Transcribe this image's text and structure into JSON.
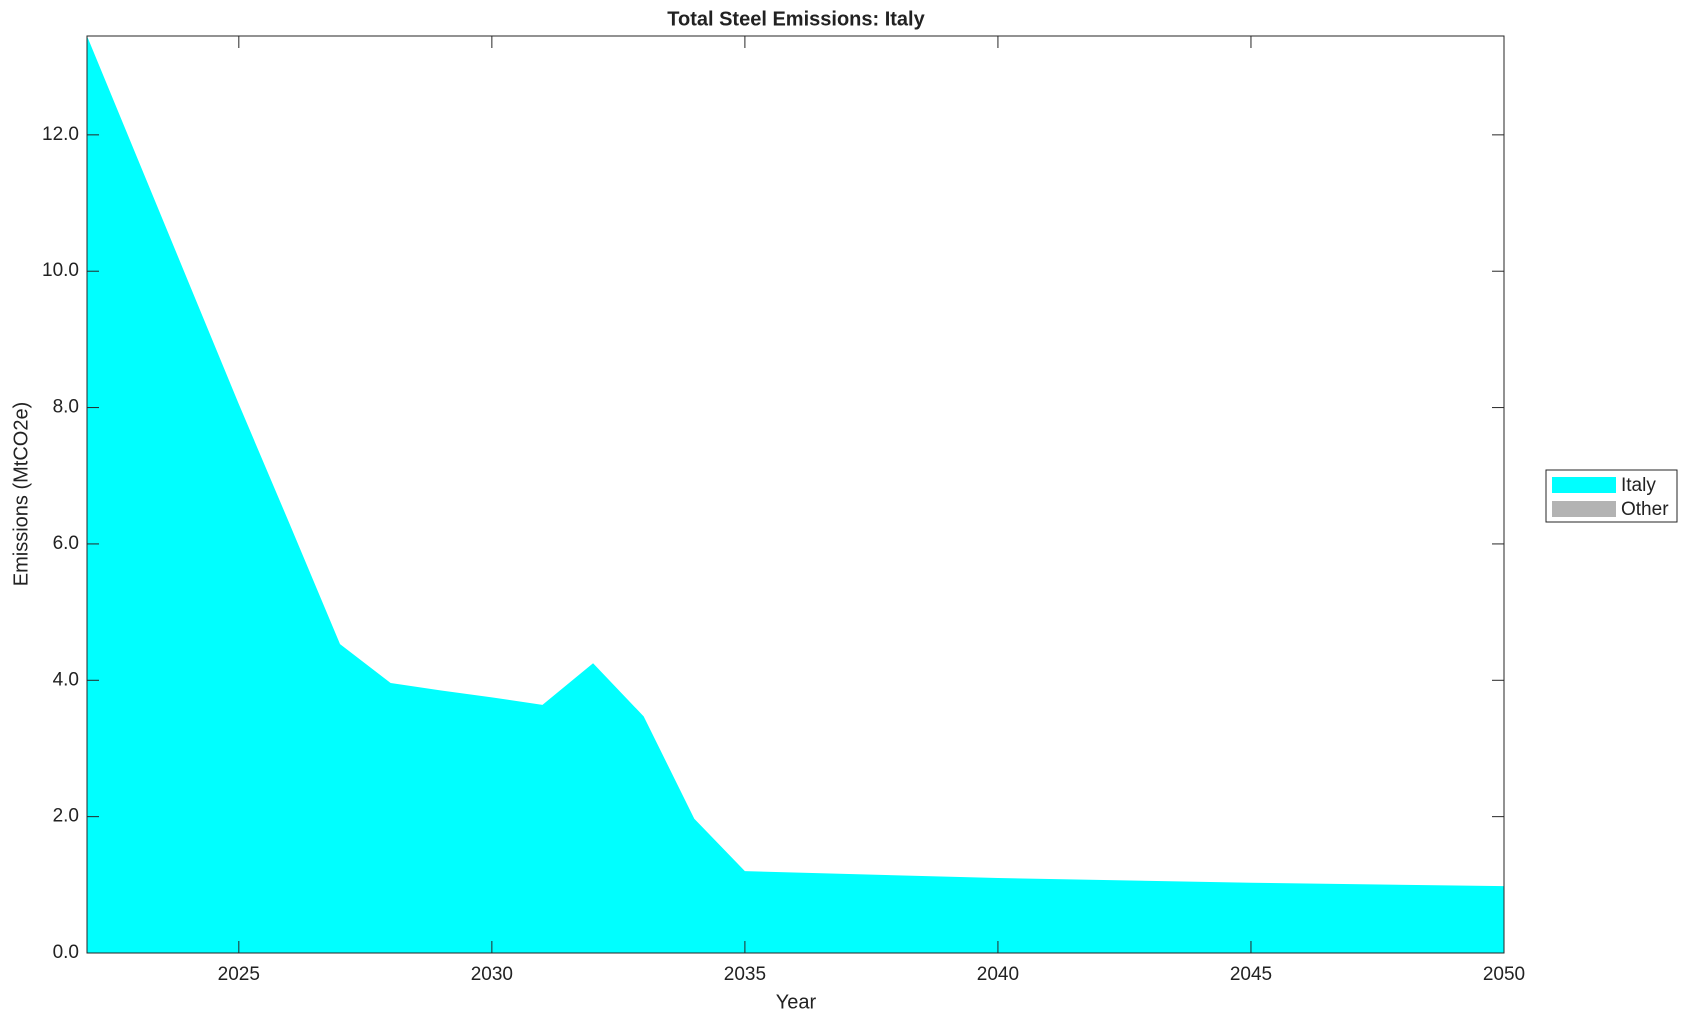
{
  "chart_data": {
    "type": "area",
    "stacked": true,
    "title": "Total Steel Emissions: Italy",
    "x_label": "Year",
    "y_label": "Emissions (MtCO2e)",
    "x": [
      2022,
      2023,
      2024,
      2025,
      2026,
      2027,
      2028,
      2029,
      2030,
      2031,
      2032,
      2033,
      2034,
      2035,
      2040,
      2045,
      2050
    ],
    "series": [
      {
        "name": "Italy",
        "color": "#00ffff",
        "values": [
          13.45,
          11.65,
          9.85,
          8.05,
          6.3,
          4.53,
          3.96,
          3.85,
          3.75,
          3.64,
          4.25,
          3.47,
          1.97,
          1.2,
          1.1,
          1.03,
          0.98
        ]
      },
      {
        "name": "Other",
        "color": "#b3b3b3",
        "values": [
          0,
          0,
          0,
          0,
          0,
          0,
          0,
          0,
          0,
          0,
          0,
          0,
          0,
          0,
          0,
          0,
          0
        ]
      }
    ],
    "xlim": [
      2022,
      2050
    ],
    "xticks": [
      2025,
      2030,
      2035,
      2040,
      2045,
      2050
    ],
    "ylim": [
      0,
      13.45
    ],
    "yticks": [
      {
        "value": 0,
        "label": "0.0"
      },
      {
        "value": 2,
        "label": "2.0"
      },
      {
        "value": 4,
        "label": "4.0"
      },
      {
        "value": 6,
        "label": "6.0"
      },
      {
        "value": 8,
        "label": "8.0"
      },
      {
        "value": 10,
        "label": "10.0"
      },
      {
        "value": 12,
        "label": "12.0"
      }
    ],
    "grid": false,
    "legend": "outside-right"
  }
}
